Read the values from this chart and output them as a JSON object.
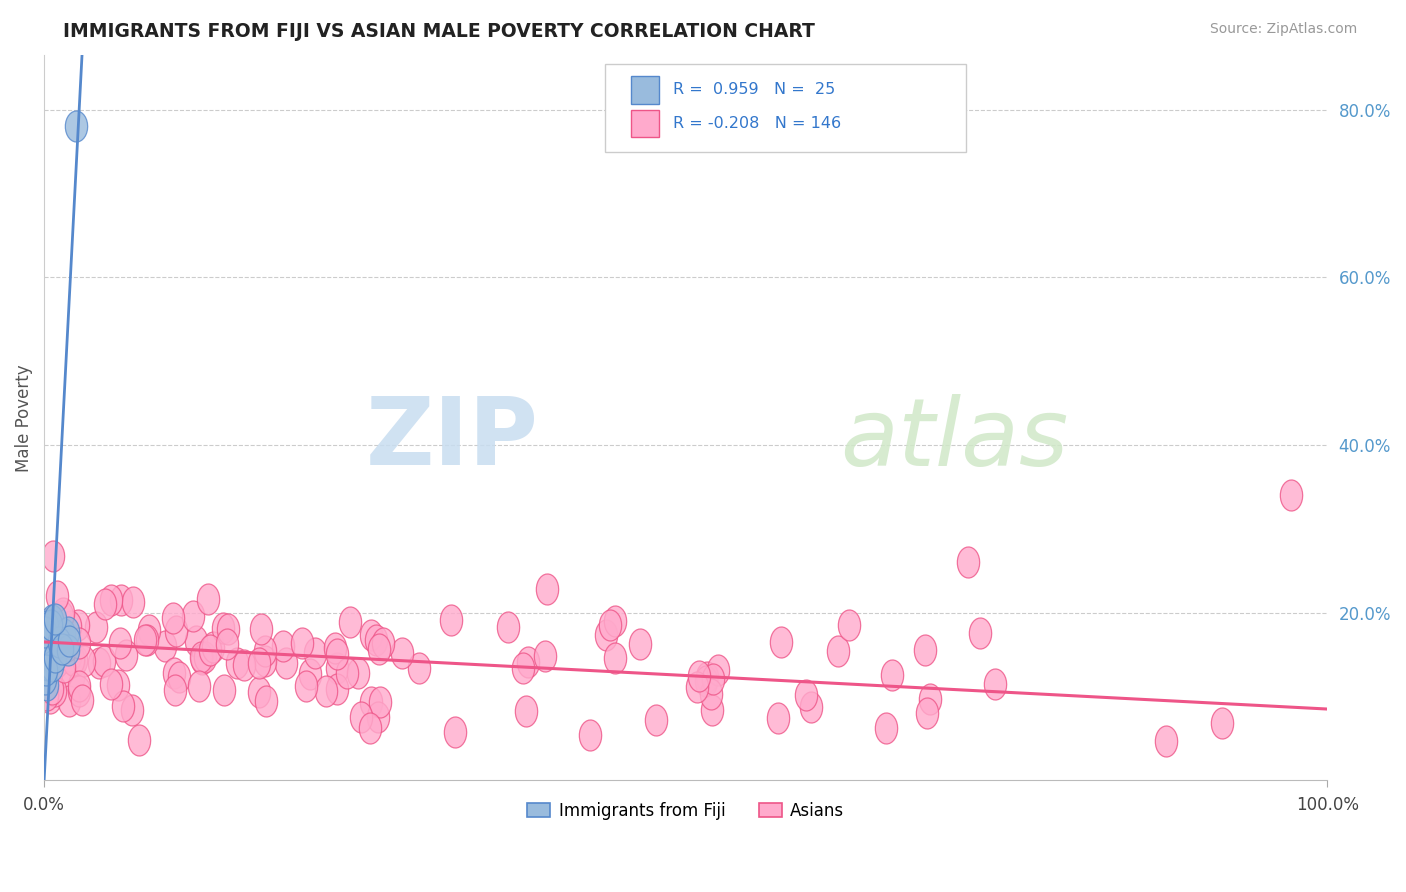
{
  "title": "IMMIGRANTS FROM FIJI VS ASIAN MALE POVERTY CORRELATION CHART",
  "source_text": "Source: ZipAtlas.com",
  "ylabel": "Male Poverty",
  "xlim": [
    0.0,
    1.0
  ],
  "ylim": [
    0.0,
    0.865
  ],
  "x_tick_labels": [
    "0.0%",
    "100.0%"
  ],
  "y_ticks": [
    0.2,
    0.4,
    0.6,
    0.8
  ],
  "y_tick_labels": [
    "20.0%",
    "40.0%",
    "60.0%",
    "80.0%"
  ],
  "fiji_color": "#5588cc",
  "fiji_color_light": "#99bbdd",
  "asian_color": "#ee5588",
  "asian_color_light": "#ffaacc",
  "fiji_R": 0.959,
  "fiji_N": 25,
  "asian_R": -0.208,
  "asian_N": 146,
  "watermark_zip": "ZIP",
  "watermark_atlas": "atlas",
  "legend_label_fiji": "Immigrants from Fiji",
  "legend_label_asian": "Asians",
  "fiji_trend_x0": 0.0,
  "fiji_trend_y0": 0.0,
  "fiji_trend_x1": 0.028,
  "fiji_trend_y1": 0.82,
  "asian_trend_x0": 0.0,
  "asian_trend_y0": 0.165,
  "asian_trend_x1": 1.0,
  "asian_trend_y1": 0.085
}
